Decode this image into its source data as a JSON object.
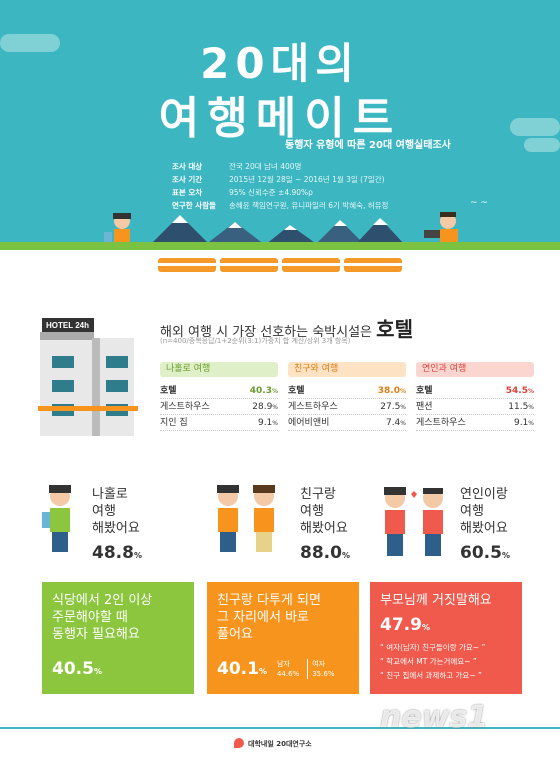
{
  "header": {
    "title_line1": "20대의",
    "title_line2": "여행메이트",
    "subtitle": "동행자 유형에 따른 20대 여행실태조사",
    "info": [
      {
        "k": "조사 대상",
        "v": "전국 20대 남녀 400명"
      },
      {
        "k": "조사 기간",
        "v": "2015년 12월 28일 ~ 2016년 1월 3일 (7일간)"
      },
      {
        "k": "표본 오차",
        "v": "95% 신뢰수준 ±4.90%p"
      },
      {
        "k": "연구한 사람들",
        "v": "송혜윤 책임연구원, 유니파일러 6기 박혜숙, 허유정"
      }
    ]
  },
  "hotel": {
    "sign": "HOTEL 24h",
    "title_prefix": "해외 여행 시 가장 선호하는 숙박시설은",
    "title_answer": "호텔",
    "note": "(n=400/중복응답/1+2순위(3:1)가중치 합 계산/상위 3개 항목)",
    "columns": [
      {
        "label": "나홀로 여행",
        "color": "#8cc63f",
        "rows": [
          [
            "호텔",
            "40.3"
          ],
          [
            "게스트하우스",
            "28.9"
          ],
          [
            "지인 집",
            "9.1"
          ]
        ]
      },
      {
        "label": "친구와 여행",
        "color": "#f7941d",
        "rows": [
          [
            "호텔",
            "38.0"
          ],
          [
            "게스트하우스",
            "27.5"
          ],
          [
            "에어비앤비",
            "7.4"
          ]
        ]
      },
      {
        "label": "연인과 여행",
        "color": "#ef5a4c",
        "rows": [
          [
            "호텔",
            "54.5"
          ],
          [
            "팬션",
            "11.5"
          ],
          [
            "게스트하우스",
            "9.1"
          ]
        ]
      }
    ]
  },
  "stats": [
    {
      "q": "나홀로\n여행\n해봤어요",
      "pct": "48.8",
      "box": "식당에서 2인 이상\n주문해야할 때\n동행자 필요해요",
      "box_pct": "40.5",
      "color": "#8cc63f"
    },
    {
      "q": "친구랑\n여행\n해봤어요",
      "pct": "88.0",
      "box": "친구랑 다투게 되면\n그 자리에서 바로\n풀어요",
      "box_pct": "40.1",
      "color": "#f7941d",
      "male_label": "남자",
      "male": "44.6",
      "female_label": "여자",
      "female": "35.6"
    },
    {
      "q": "연인이랑\n여행\n해봤어요",
      "pct": "60.5",
      "box": "부모님께 거짓말해요",
      "box_pct": "47.9",
      "color": "#ef5a4c",
      "quotes": [
        "“ 여자(남자) 친구들이랑 가요~ ”",
        "“ 학교에서 MT 가는거에요~ ”",
        "“ 친구 집에서 과제하고 가요~ ”"
      ]
    }
  ],
  "unit": "%",
  "footer": {
    "lab": "대학내일 20대연구소"
  },
  "watermark": "news1"
}
